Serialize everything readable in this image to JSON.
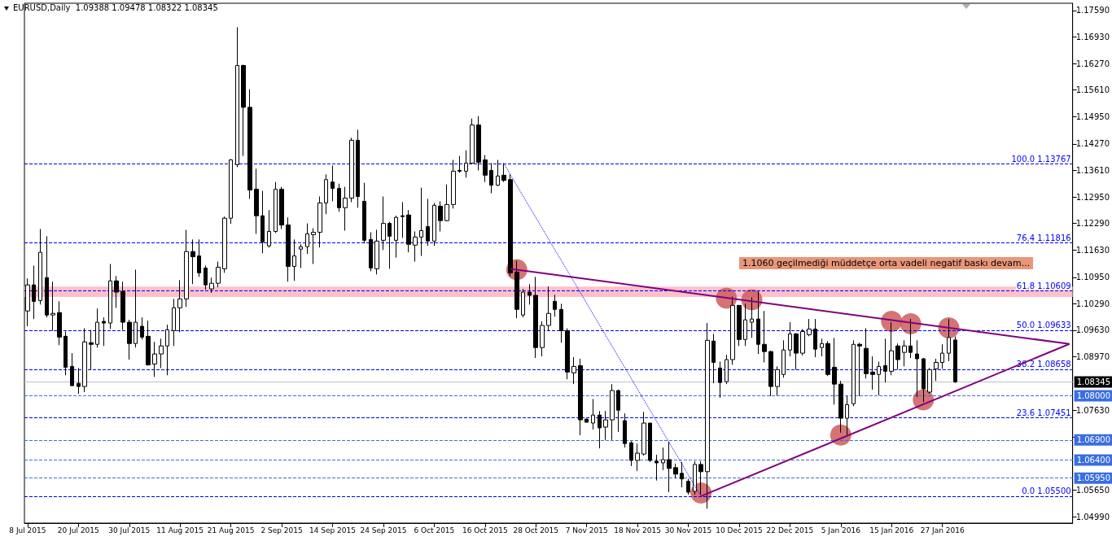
{
  "chart_data": {
    "type": "candlestick",
    "title": "EURUSD,Daily  1.09388 1.09478 1.08322 1.08345",
    "categories": [
      "8 Jul 2015",
      null,
      null,
      null,
      null,
      null,
      null,
      null,
      "20 Jul 2015",
      null,
      null,
      null,
      null,
      null,
      null,
      null,
      "30 Jul 2015",
      null,
      null,
      null,
      null,
      null,
      null,
      null,
      "11 Aug 2015",
      null,
      null,
      null,
      null,
      null,
      null,
      null,
      "21 Aug 2015",
      null,
      null,
      null,
      null,
      null,
      null,
      null,
      "2 Sep 2015",
      null,
      null,
      null,
      null,
      null,
      null,
      null,
      "14 Sep 2015",
      null,
      null,
      null,
      null,
      null,
      null,
      null,
      "24 Sep 2015",
      null,
      null,
      null,
      null,
      null,
      null,
      null,
      "6 Oct 2015",
      null,
      null,
      null,
      null,
      null,
      null,
      null,
      "16 Oct 2015",
      null,
      null,
      null,
      null,
      null,
      null,
      null,
      "28 Oct 2015",
      null,
      null,
      null,
      null,
      null,
      null,
      null,
      "7 Nov 2015",
      null,
      null,
      null,
      null,
      null,
      null,
      null,
      "18 Nov 2015",
      null,
      null,
      null,
      null,
      null,
      null,
      null,
      "30 Nov 2015",
      null,
      null,
      null,
      null,
      null,
      null,
      null,
      "10 Dec 2015",
      null,
      null,
      null,
      null,
      null,
      null,
      null,
      "22 Dec 2015",
      null,
      null,
      null,
      null,
      null,
      null,
      null,
      "5 Jan 2016",
      null,
      null,
      null,
      null,
      null,
      null,
      null,
      "15 Jan 2016",
      null,
      null,
      null,
      null,
      null,
      null,
      null,
      "27 Jan 2016",
      null,
      null,
      null,
      null,
      null,
      null,
      null,
      null,
      null,
      null,
      null,
      null,
      null,
      null,
      null,
      null,
      null,
      null,
      null,
      null
    ],
    "ohlc": [
      [
        1.1011,
        1.1092,
        1.0973,
        1.1076
      ],
      [
        1.1076,
        1.1124,
        1.0991,
        1.1035
      ],
      [
        1.1037,
        1.1215,
        1.1027,
        1.1157
      ],
      [
        1.1094,
        1.1197,
        1.0995,
        1.1001
      ],
      [
        1.1001,
        1.1084,
        1.0962,
        1.1005
      ],
      [
        1.1007,
        1.1035,
        1.0926,
        1.0946
      ],
      [
        1.0948,
        1.096,
        1.0851,
        1.0871
      ],
      [
        1.0873,
        1.0906,
        1.0825,
        1.0825
      ],
      [
        1.0831,
        1.0869,
        1.0805,
        1.0823
      ],
      [
        1.0823,
        1.0968,
        1.0809,
        1.0934
      ],
      [
        1.0932,
        1.0964,
        1.0865,
        1.0928
      ],
      [
        1.0928,
        1.1017,
        1.092,
        1.0983
      ],
      [
        1.0985,
        1.0995,
        1.0924,
        1.0981
      ],
      [
        1.0981,
        1.1128,
        1.0966,
        1.1086
      ],
      [
        1.1086,
        1.1098,
        1.1019,
        1.1058
      ],
      [
        1.106,
        1.1084,
        1.0964,
        1.0983
      ],
      [
        1.0983,
        1.0989,
        1.089,
        1.093
      ],
      [
        1.093,
        1.1114,
        1.092,
        1.0983
      ],
      [
        1.0973,
        1.0995,
        1.094,
        1.0946
      ],
      [
        1.0948,
        1.0987,
        1.0875,
        1.0877
      ],
      [
        1.0879,
        1.0934,
        1.0847,
        1.0904
      ],
      [
        1.0904,
        1.0942,
        1.0869,
        1.0924
      ],
      [
        1.0924,
        1.0977,
        1.0851,
        1.0964
      ],
      [
        1.0962,
        1.1041,
        1.0924,
        1.1019
      ],
      [
        1.1019,
        1.1088,
        1.0958,
        1.1041
      ],
      [
        1.1041,
        1.1213,
        1.1021,
        1.1159
      ],
      [
        1.1159,
        1.1189,
        1.1078,
        1.1146
      ],
      [
        1.1148,
        1.1189,
        1.1096,
        1.1106
      ],
      [
        1.1118,
        1.1124,
        1.1064,
        1.1076
      ],
      [
        1.1066,
        1.1094,
        1.1056,
        1.108
      ],
      [
        1.108,
        1.1134,
        1.107,
        1.112
      ],
      [
        1.1116,
        1.1246,
        1.1106,
        1.1242
      ],
      [
        1.1242,
        1.1389,
        1.1228,
        1.1387
      ],
      [
        1.1375,
        1.1717,
        1.1369,
        1.1622
      ],
      [
        1.1622,
        1.1624,
        1.1397,
        1.1518
      ],
      [
        1.1518,
        1.1563,
        1.129,
        1.1312
      ],
      [
        1.1314,
        1.1365,
        1.1203,
        1.1248
      ],
      [
        1.1248,
        1.131,
        1.1155,
        1.1183
      ],
      [
        1.1173,
        1.1262,
        1.1169,
        1.1209
      ],
      [
        1.1209,
        1.1332,
        1.1205,
        1.1314
      ],
      [
        1.1314,
        1.132,
        1.1215,
        1.1225
      ],
      [
        1.1225,
        1.1244,
        1.1084,
        1.1122
      ],
      [
        1.1122,
        1.1189,
        1.1086,
        1.1148
      ],
      [
        1.1165,
        1.1177,
        1.1118,
        1.1171
      ],
      [
        1.1171,
        1.1229,
        1.1153,
        1.1203
      ],
      [
        1.1201,
        1.1217,
        1.1128,
        1.1207
      ],
      [
        1.1207,
        1.1296,
        1.1169,
        1.128
      ],
      [
        1.128,
        1.1351,
        1.1252,
        1.1338
      ],
      [
        1.1332,
        1.1373,
        1.1284,
        1.1316
      ],
      [
        1.1316,
        1.1328,
        1.1258,
        1.1268
      ],
      [
        1.1268,
        1.132,
        1.1211,
        1.1292
      ],
      [
        1.1292,
        1.1442,
        1.1282,
        1.1436
      ],
      [
        1.1436,
        1.1462,
        1.1268,
        1.1296
      ],
      [
        1.1284,
        1.133,
        1.1179,
        1.1187
      ],
      [
        1.1189,
        1.1207,
        1.111,
        1.1118
      ],
      [
        1.1116,
        1.1213,
        1.1102,
        1.1185
      ],
      [
        1.1187,
        1.1296,
        1.1163,
        1.1229
      ],
      [
        1.1229,
        1.1233,
        1.1116,
        1.1197
      ],
      [
        1.1187,
        1.1248,
        1.1144,
        1.1244
      ],
      [
        1.1248,
        1.1282,
        1.1193,
        1.1246
      ],
      [
        1.125,
        1.1262,
        1.1157,
        1.1177
      ],
      [
        1.1175,
        1.1209,
        1.1134,
        1.1195
      ],
      [
        1.1195,
        1.1318,
        1.1148,
        1.1211
      ],
      [
        1.1221,
        1.129,
        1.1173,
        1.1185
      ],
      [
        1.1185,
        1.128,
        1.1173,
        1.1274
      ],
      [
        1.1272,
        1.1284,
        1.1209,
        1.1236
      ],
      [
        1.1236,
        1.1326,
        1.1234,
        1.1276
      ],
      [
        1.1276,
        1.1387,
        1.1266,
        1.1359
      ],
      [
        1.1361,
        1.1397,
        1.1355,
        1.1359
      ],
      [
        1.1359,
        1.1411,
        1.1343,
        1.1379
      ],
      [
        1.1379,
        1.149,
        1.1377,
        1.1474
      ],
      [
        1.1474,
        1.1496,
        1.1361,
        1.1381
      ],
      [
        1.1387,
        1.1399,
        1.1332,
        1.1349
      ],
      [
        1.1361,
        1.1379,
        1.1304,
        1.1324
      ],
      [
        1.1324,
        1.1387,
        1.1322,
        1.1347
      ],
      [
        1.1349,
        1.1379,
        1.1332,
        1.1336
      ],
      [
        1.1338,
        1.1351,
        1.1098,
        1.1106
      ],
      [
        1.1108,
        1.1136,
        1.0993,
        1.1015
      ],
      [
        1.1001,
        1.1066,
        1.0995,
        1.1058
      ],
      [
        1.1058,
        1.1078,
        1.1027,
        1.105
      ],
      [
        1.105,
        1.1096,
        1.0894,
        1.092
      ],
      [
        1.092,
        1.0985,
        1.0898,
        1.0975
      ],
      [
        1.0975,
        1.1072,
        1.0962,
        1.1005
      ],
      [
        1.1035,
        1.1051,
        1.0997,
        1.1015
      ],
      [
        1.1015,
        1.1029,
        1.0932,
        1.0962
      ],
      [
        1.0962,
        1.0968,
        1.0841,
        1.0859
      ],
      [
        1.0857,
        1.0896,
        1.0829,
        1.0873
      ],
      [
        1.0875,
        1.0892,
        1.0702,
        1.074
      ],
      [
        1.0742,
        1.0742,
        1.0734,
        1.0734
      ],
      [
        1.0732,
        1.0792,
        1.0716,
        1.0752
      ],
      [
        1.0752,
        1.0762,
        1.0669,
        1.072
      ],
      [
        1.0722,
        1.0762,
        1.069,
        1.074
      ],
      [
        1.074,
        1.0829,
        1.069,
        1.0813
      ],
      [
        1.0813,
        1.0815,
        1.071,
        1.0764
      ],
      [
        1.0738,
        1.0756,
        1.0671,
        1.0681
      ],
      [
        1.0683,
        1.0687,
        1.0625,
        1.0639
      ],
      [
        1.0639,
        1.0681,
        1.0613,
        1.0657
      ],
      [
        1.0655,
        1.076,
        1.0651,
        1.0732
      ],
      [
        1.0732,
        1.0732,
        1.0635,
        1.0639
      ],
      [
        1.0637,
        1.0653,
        1.0589,
        1.0633
      ],
      [
        1.0633,
        1.0671,
        1.0615,
        1.0641
      ],
      [
        1.0641,
        1.0685,
        1.056,
        1.0619
      ],
      [
        1.0621,
        1.0631,
        1.0595,
        1.0605
      ],
      [
        1.0607,
        1.0635,
        1.0572,
        1.0593
      ],
      [
        1.0587,
        1.0593,
        1.0554,
        1.056
      ],
      [
        1.0562,
        1.0637,
        1.0554,
        1.0629
      ],
      [
        1.0629,
        1.0637,
        1.0554,
        1.0611
      ],
      [
        1.0611,
        1.0981,
        1.0519,
        1.0938
      ],
      [
        1.0936,
        1.0954,
        1.0831,
        1.0883
      ],
      [
        1.0869,
        1.0885,
        1.0795,
        1.0833
      ],
      [
        1.0835,
        1.0902,
        1.0829,
        1.089
      ],
      [
        1.089,
        1.1047,
        1.0877,
        1.1025
      ],
      [
        1.1025,
        1.1025,
        1.0924,
        1.094
      ],
      [
        1.094,
        1.1029,
        1.0924,
        1.0989
      ],
      [
        1.0983,
        1.1045,
        1.0944,
        1.0991
      ],
      [
        1.0991,
        1.106,
        1.0904,
        1.0928
      ],
      [
        1.0928,
        1.1011,
        1.0883,
        1.091
      ],
      [
        1.091,
        1.0912,
        1.0799,
        1.0823
      ],
      [
        1.0823,
        1.0873,
        1.0801,
        1.0865
      ],
      [
        1.0853,
        1.0938,
        1.0845,
        1.0914
      ],
      [
        1.0914,
        1.0983,
        1.0898,
        1.0954
      ],
      [
        1.0954,
        1.0956,
        1.0865,
        1.0906
      ],
      [
        1.0906,
        1.0966,
        1.09,
        1.096
      ],
      [
        1.0952,
        1.0991,
        1.0948,
        1.0966
      ],
      [
        1.0966,
        1.0991,
        1.0896,
        1.0916
      ],
      [
        1.092,
        1.0942,
        1.0898,
        1.093
      ],
      [
        1.093,
        1.0936,
        1.0849,
        1.0853
      ],
      [
        1.0871,
        1.0944,
        1.0778,
        1.0829
      ],
      [
        1.0829,
        1.0837,
        1.0708,
        1.0744
      ],
      [
        1.0744,
        1.0799,
        1.0702,
        1.0778
      ],
      [
        1.078,
        1.0938,
        1.0774,
        1.0928
      ],
      [
        1.0928,
        1.0932,
        1.0799,
        1.0924
      ],
      [
        1.0918,
        1.0968,
        1.0843,
        1.0855
      ],
      [
        1.0859,
        1.0898,
        1.0815,
        1.0853
      ],
      [
        1.0853,
        1.0885,
        1.0801,
        1.0873
      ],
      [
        1.0875,
        1.0942,
        1.0833,
        1.0861
      ],
      [
        1.0861,
        1.0983,
        1.0851,
        1.0912
      ],
      [
        1.0924,
        1.093,
        1.0865,
        1.089
      ],
      [
        1.0908,
        1.0938,
        1.0873,
        1.0924
      ],
      [
        1.0924,
        1.0991,
        1.0894,
        1.0908
      ],
      [
        1.0904,
        1.0938,
        1.0797,
        1.0892
      ],
      [
        1.0892,
        1.0894,
        1.0784,
        1.0817
      ],
      [
        1.0809,
        1.0869,
        1.0805,
        1.0865
      ],
      [
        1.0867,
        1.0892,
        1.0837,
        1.0883
      ],
      [
        1.0883,
        1.0928,
        1.0867,
        1.0906
      ],
      [
        1.0906,
        1.0991,
        1.0886,
        1.0945
      ],
      [
        1.09388,
        1.09478,
        1.08322,
        1.08345
      ],
      null,
      null,
      null,
      null,
      null,
      null,
      null,
      null,
      null,
      null,
      null,
      null,
      null,
      null,
      null,
      null,
      null,
      null
    ],
    "series": [
      {
        "type": "line",
        "color": "#800080",
        "line_style": "solid",
        "values": [
          null,
          null,
          null,
          null,
          null,
          null,
          null,
          null,
          null,
          null,
          null,
          null,
          null,
          null,
          null,
          null,
          null,
          null,
          null,
          null,
          null,
          null,
          null,
          null,
          null,
          null,
          null,
          null,
          null,
          null,
          null,
          null,
          null,
          null,
          null,
          null,
          null,
          null,
          null,
          null,
          null,
          null,
          null,
          null,
          null,
          null,
          null,
          null,
          null,
          null,
          null,
          null,
          null,
          null,
          null,
          null,
          null,
          null,
          null,
          null,
          null,
          null,
          null,
          null,
          null,
          null,
          null,
          null,
          null,
          null,
          null,
          null,
          null,
          null,
          null,
          null,
          1.1116,
          null,
          null,
          null,
          null,
          null,
          null,
          null,
          null,
          null,
          null,
          null,
          null,
          null,
          null,
          null,
          null,
          null,
          null,
          null,
          null,
          null,
          null,
          null,
          null,
          null,
          null,
          null,
          null,
          null,
          null,
          null,
          null,
          null,
          null,
          null,
          null,
          null,
          null,
          null,
          null,
          null,
          null,
          null,
          null,
          null,
          null,
          null,
          null,
          null,
          null,
          null,
          null,
          null,
          null,
          null,
          null,
          null,
          null,
          null,
          null,
          null,
          null,
          null,
          null,
          null,
          null,
          null,
          null,
          null,
          null,
          null,
          null,
          null,
          null,
          null,
          null,
          null,
          null,
          null,
          null,
          null,
          null,
          null,
          null,
          null,
          null,
          null,
          1.0929
        ]
      },
      {
        "type": "line",
        "color": "#800080",
        "line_style": "solid",
        "values": [
          null,
          null,
          null,
          null,
          null,
          null,
          null,
          null,
          null,
          null,
          null,
          null,
          null,
          null,
          null,
          null,
          null,
          null,
          null,
          null,
          null,
          null,
          null,
          null,
          null,
          null,
          null,
          null,
          null,
          null,
          null,
          null,
          null,
          null,
          null,
          null,
          null,
          null,
          null,
          null,
          null,
          null,
          null,
          null,
          null,
          null,
          null,
          null,
          null,
          null,
          null,
          null,
          null,
          null,
          null,
          null,
          null,
          null,
          null,
          null,
          null,
          null,
          null,
          null,
          null,
          null,
          null,
          null,
          null,
          null,
          null,
          null,
          null,
          null,
          null,
          null,
          null,
          null,
          null,
          null,
          null,
          null,
          null,
          null,
          null,
          null,
          null,
          null,
          null,
          null,
          null,
          null,
          null,
          null,
          null,
          null,
          null,
          null,
          null,
          null,
          null,
          null,
          null,
          null,
          null,
          null,
          1.055,
          null,
          null,
          null,
          null,
          null,
          null,
          null,
          null,
          null,
          null,
          null,
          null,
          null,
          null,
          null,
          null,
          null,
          null,
          null,
          null,
          null,
          null,
          null,
          null,
          null,
          null,
          null,
          null,
          null,
          null,
          null,
          null,
          null,
          null,
          null,
          null,
          null,
          null,
          null,
          null,
          null,
          null,
          null,
          null,
          null,
          null,
          null,
          null,
          null,
          null,
          null,
          null,
          null,
          null,
          null,
          null,
          null,
          1.0929
        ]
      },
      {
        "type": "line",
        "color": "#0000ff",
        "line_style": "dotted",
        "values": [
          null,
          null,
          null,
          null,
          null,
          null,
          null,
          null,
          null,
          null,
          null,
          null,
          null,
          null,
          null,
          null,
          null,
          null,
          null,
          null,
          null,
          null,
          null,
          null,
          null,
          null,
          null,
          null,
          null,
          null,
          null,
          null,
          null,
          null,
          null,
          null,
          null,
          null,
          null,
          null,
          null,
          null,
          null,
          null,
          null,
          null,
          null,
          null,
          null,
          null,
          null,
          null,
          null,
          null,
          null,
          null,
          null,
          null,
          null,
          null,
          null,
          null,
          null,
          null,
          null,
          null,
          null,
          null,
          null,
          null,
          null,
          null,
          null,
          null,
          null,
          1.1377,
          null,
          null,
          null,
          null,
          null,
          null,
          null,
          null,
          null,
          null,
          null,
          null,
          null,
          null,
          null,
          null,
          null,
          null,
          null,
          null,
          null,
          null,
          null,
          null,
          null,
          null,
          null,
          null,
          null,
          null,
          1.055,
          null,
          null,
          null,
          null,
          null,
          null,
          null,
          null,
          null,
          null,
          null,
          null,
          null,
          null,
          null,
          null,
          null,
          null,
          null,
          null,
          null,
          null,
          null,
          null,
          null,
          null,
          null,
          null,
          null,
          null,
          null,
          null,
          null,
          null,
          null,
          null,
          null,
          null,
          null,
          null,
          null,
          null,
          null,
          null,
          null,
          null,
          null,
          null,
          null,
          null,
          null,
          null,
          null,
          null,
          null,
          null,
          null,
          null
        ]
      },
      {
        "type": "scatter",
        "color": "#cd5c5c",
        "marker": "circle",
        "values": [
          null,
          null,
          null,
          null,
          null,
          null,
          null,
          null,
          null,
          null,
          null,
          null,
          null,
          null,
          null,
          null,
          null,
          null,
          null,
          null,
          null,
          null,
          null,
          null,
          null,
          null,
          null,
          null,
          null,
          null,
          null,
          null,
          null,
          null,
          null,
          null,
          null,
          null,
          null,
          null,
          null,
          null,
          null,
          null,
          null,
          null,
          null,
          null,
          null,
          null,
          null,
          null,
          null,
          null,
          null,
          null,
          null,
          null,
          null,
          null,
          null,
          null,
          null,
          null,
          null,
          null,
          null,
          null,
          null,
          null,
          null,
          null,
          null,
          null,
          null,
          null,
          null,
          1.1114,
          null,
          null,
          null,
          null,
          null,
          null,
          null,
          null,
          null,
          null,
          null,
          null,
          null,
          null,
          null,
          null,
          null,
          null,
          null,
          null,
          null,
          null,
          null,
          null,
          null,
          null,
          null,
          null,
          1.0558,
          null,
          null,
          null,
          1.1043,
          null,
          null,
          null,
          1.1039,
          null,
          null,
          null,
          null,
          null,
          null,
          null,
          null,
          null,
          null,
          null,
          null,
          null,
          1.0702,
          null,
          null,
          null,
          null,
          null,
          null,
          null,
          1.0985,
          null,
          null,
          1.0979,
          null,
          1.079,
          null,
          null,
          null,
          1.0969,
          null,
          null,
          null,
          null,
          null,
          null,
          null,
          null,
          null,
          null,
          null,
          null,
          null,
          null,
          null,
          null,
          null,
          null,
          null
        ]
      }
    ],
    "ylim": [
      1.0483,
      1.1777
    ],
    "yticks": [
      {
        "value": 1.1759,
        "label": "1.17590"
      },
      {
        "value": 1.1693,
        "label": "1.16930"
      },
      {
        "value": 1.1627,
        "label": "1.16270"
      },
      {
        "value": 1.1561,
        "label": "1.15610"
      },
      {
        "value": 1.1495,
        "label": "1.14950"
      },
      {
        "value": 1.1427,
        "label": "1.14270"
      },
      {
        "value": 1.1361,
        "label": "1.13610"
      },
      {
        "value": 1.1295,
        "label": "1.12950"
      },
      {
        "value": 1.1229,
        "label": "1.12290"
      },
      {
        "value": 1.1163,
        "label": "1.11630"
      },
      {
        "value": 1.1095,
        "label": "1.10950"
      },
      {
        "value": 1.1029,
        "label": "1.10290"
      },
      {
        "value": 1.0963,
        "label": "1.09630"
      },
      {
        "value": 1.0897,
        "label": "1.08970"
      },
      {
        "value": 1.0763,
        "label": "1.07630"
      },
      {
        "value": 1.0697,
        "label": null
      },
      {
        "value": 1.0565,
        "label": "1.05650"
      },
      {
        "value": 1.0499,
        "label": "1.04990"
      }
    ],
    "ref_lines": [
      {
        "axis": "y",
        "value": 1.13767,
        "label": "100.0 1.13767",
        "color": "#0000ff",
        "line_style": "dashed"
      },
      {
        "axis": "y",
        "value": 1.11816,
        "label": "76.4 1.11816",
        "color": "#0000ff",
        "line_style": "dashed"
      },
      {
        "axis": "y",
        "value": 1.10609,
        "label": "61.8 1.10609",
        "color": "#0000ff",
        "line_style": "dashed"
      },
      {
        "axis": "y",
        "value": 1.09633,
        "label": "50.0 1.09633",
        "color": "#0000ff",
        "line_style": "dashed"
      },
      {
        "axis": "y",
        "value": 1.08658,
        "label": "38.2 1.08658",
        "color": "#0000ff",
        "line_style": "dashed"
      },
      {
        "axis": "y",
        "value": 1.07451,
        "label": "23.6 1.07451",
        "color": "#0000ff",
        "line_style": "dashed"
      },
      {
        "axis": "y",
        "value": 1.055,
        "label": "0.0 1.05500",
        "color": "#0000ff",
        "line_style": "dashed"
      },
      {
        "axis": "y",
        "value": 1.08345,
        "label": "1.08345",
        "color": "#c0c0c0",
        "line_style": "solid"
      },
      {
        "axis": "y",
        "value": 1.08,
        "label": "1.08000",
        "color": "#3a6ee0",
        "line_style": "dashed"
      },
      {
        "axis": "y",
        "value": 1.069,
        "label": "1.06900",
        "color": "#3a6ee0",
        "line_style": "dashed"
      },
      {
        "axis": "y",
        "value": 1.064,
        "label": "1.06400",
        "color": "#3a6ee0",
        "line_style": "dashed"
      },
      {
        "axis": "y",
        "value": 1.0595,
        "label": "1.05950",
        "color": "#3a6ee0",
        "line_style": "dashed"
      }
    ],
    "bands": [
      {
        "axis": "y",
        "from": 1.1046,
        "to": 1.1072,
        "color": "#ffc0cb"
      }
    ],
    "annotations": [
      "1.1060 geçilmediği müddetçe orta vadeli negatif baskı devam..."
    ],
    "grid": false
  }
}
